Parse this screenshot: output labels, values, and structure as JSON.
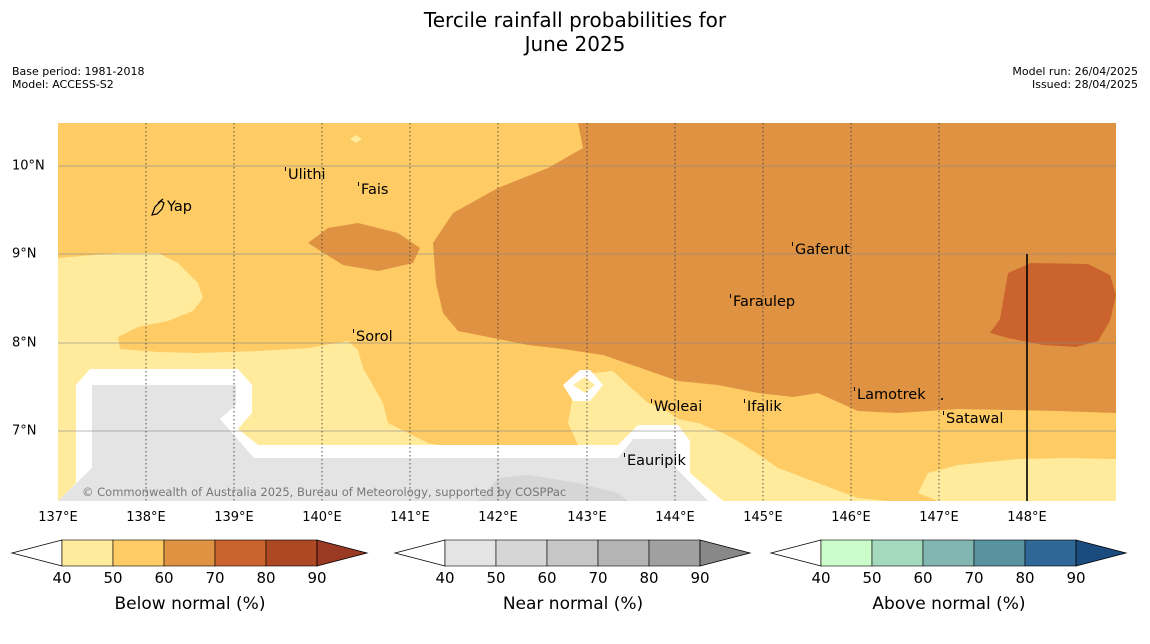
{
  "title_line1": "Tercile rainfall probabilities for",
  "title_line2": "June 2025",
  "meta_left": {
    "base_period": "Base period: 1981-2018",
    "model": "Model: ACCESS-S2"
  },
  "meta_right": {
    "model_run": "Model run: 26/04/2025",
    "issued": "Issued: 28/04/2025"
  },
  "latitude_labels": [
    "10°N",
    "9°N",
    "8°N",
    "7°N"
  ],
  "longitude_labels": [
    "137°E",
    "138°E",
    "139°E",
    "140°E",
    "141°E",
    "142°E",
    "143°E",
    "144°E",
    "145°E",
    "146°E",
    "147°E",
    "148°E"
  ],
  "places": [
    "Ulithi",
    "Fais",
    "Yap",
    "Gaferut",
    "Faraulep",
    "Sorol",
    "Woleai",
    "Ifalik",
    "Lamotrek",
    "Satawal",
    "Eauripik"
  ],
  "copyright": "© Commonwealth of Australia 2025, Bureau of Meteorology, supported by COSPPac",
  "colorbars": [
    {
      "label": "Below normal (%)",
      "ticks": [
        "40",
        "50",
        "60",
        "70",
        "80",
        "90"
      ],
      "colors": [
        "#ffeb9b",
        "#fecb65",
        "#df9241",
        "#cb632e",
        "#ad4824"
      ],
      "over_color": "#9a3a24"
    },
    {
      "label": "Near normal (%)",
      "ticks": [
        "40",
        "50",
        "60",
        "70",
        "80",
        "90"
      ],
      "colors": [
        "#e4e4e4",
        "#d6d6d6",
        "#c6c6c6",
        "#b4b4b4",
        "#a0a0a0"
      ],
      "over_color": "#888888"
    },
    {
      "label": "Above normal (%)",
      "ticks": [
        "40",
        "50",
        "60",
        "70",
        "80",
        "90"
      ],
      "colors": [
        "#cbfdcb",
        "#a4d9bd",
        "#82b7b1",
        "#5993a2",
        "#2f6797"
      ],
      "over_color": "#1a4c80"
    }
  ]
}
